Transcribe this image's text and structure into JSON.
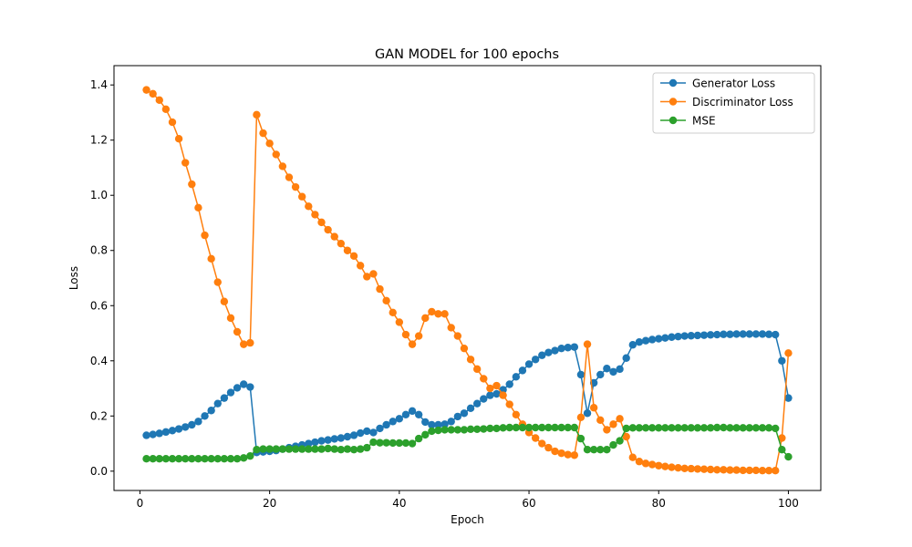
{
  "chart_data": {
    "type": "line",
    "title": "GAN MODEL  for 100 epochs",
    "xlabel": "Epoch",
    "ylabel": "Loss",
    "xlim": [
      -4,
      105
    ],
    "ylim": [
      -0.07,
      1.47
    ],
    "xticks": [
      0,
      20,
      40,
      60,
      80,
      100
    ],
    "yticks": [
      0.0,
      0.2,
      0.4,
      0.6,
      0.8,
      1.0,
      1.2,
      1.4
    ],
    "grid": false,
    "legend_position": "top-right",
    "x": [
      1,
      2,
      3,
      4,
      5,
      6,
      7,
      8,
      9,
      10,
      11,
      12,
      13,
      14,
      15,
      16,
      17,
      18,
      19,
      20,
      21,
      22,
      23,
      24,
      25,
      26,
      27,
      28,
      29,
      30,
      31,
      32,
      33,
      34,
      35,
      36,
      37,
      38,
      39,
      40,
      41,
      42,
      43,
      44,
      45,
      46,
      47,
      48,
      49,
      50,
      51,
      52,
      53,
      54,
      55,
      56,
      57,
      58,
      59,
      60,
      61,
      62,
      63,
      64,
      65,
      66,
      67,
      68,
      69,
      70,
      71,
      72,
      73,
      74,
      75,
      76,
      77,
      78,
      79,
      80,
      81,
      82,
      83,
      84,
      85,
      86,
      87,
      88,
      89,
      90,
      91,
      92,
      93,
      94,
      95,
      96,
      97,
      98,
      99,
      100
    ],
    "series": [
      {
        "name": "Generator Loss",
        "color": "#1f77b4",
        "values": [
          0.13,
          0.133,
          0.137,
          0.142,
          0.147,
          0.153,
          0.16,
          0.168,
          0.18,
          0.2,
          0.22,
          0.245,
          0.265,
          0.285,
          0.302,
          0.315,
          0.305,
          0.068,
          0.07,
          0.072,
          0.075,
          0.08,
          0.085,
          0.09,
          0.095,
          0.1,
          0.105,
          0.11,
          0.113,
          0.117,
          0.12,
          0.125,
          0.13,
          0.138,
          0.145,
          0.14,
          0.155,
          0.168,
          0.18,
          0.19,
          0.205,
          0.218,
          0.205,
          0.178,
          0.168,
          0.168,
          0.17,
          0.18,
          0.198,
          0.21,
          0.228,
          0.245,
          0.262,
          0.275,
          0.28,
          0.295,
          0.315,
          0.342,
          0.365,
          0.388,
          0.405,
          0.42,
          0.43,
          0.437,
          0.445,
          0.448,
          0.45,
          0.35,
          0.21,
          0.32,
          0.35,
          0.372,
          0.36,
          0.37,
          0.41,
          0.458,
          0.468,
          0.473,
          0.477,
          0.48,
          0.483,
          0.486,
          0.488,
          0.49,
          0.491,
          0.492,
          0.493,
          0.494,
          0.495,
          0.496,
          0.496,
          0.497,
          0.497,
          0.497,
          0.497,
          0.497,
          0.496,
          0.495,
          0.4,
          0.265
        ]
      },
      {
        "name": "Discriminator Loss",
        "color": "#ff7f0e",
        "values": [
          1.382,
          1.368,
          1.345,
          1.312,
          1.265,
          1.205,
          1.118,
          1.04,
          0.955,
          0.855,
          0.77,
          0.685,
          0.615,
          0.555,
          0.505,
          0.46,
          0.465,
          1.292,
          1.225,
          1.188,
          1.148,
          1.105,
          1.065,
          1.03,
          0.995,
          0.96,
          0.93,
          0.902,
          0.875,
          0.85,
          0.825,
          0.8,
          0.78,
          0.745,
          0.705,
          0.715,
          0.66,
          0.618,
          0.575,
          0.54,
          0.495,
          0.46,
          0.49,
          0.555,
          0.578,
          0.57,
          0.57,
          0.52,
          0.49,
          0.445,
          0.405,
          0.37,
          0.335,
          0.3,
          0.31,
          0.275,
          0.242,
          0.205,
          0.17,
          0.14,
          0.12,
          0.1,
          0.085,
          0.072,
          0.065,
          0.06,
          0.058,
          0.195,
          0.46,
          0.23,
          0.185,
          0.15,
          0.17,
          0.19,
          0.125,
          0.05,
          0.035,
          0.028,
          0.024,
          0.02,
          0.017,
          0.014,
          0.012,
          0.01,
          0.009,
          0.008,
          0.007,
          0.006,
          0.005,
          0.005,
          0.004,
          0.004,
          0.003,
          0.003,
          0.003,
          0.002,
          0.002,
          0.002,
          0.12,
          0.428
        ]
      },
      {
        "name": "MSE",
        "color": "#2ca02c",
        "values": [
          0.045,
          0.045,
          0.045,
          0.045,
          0.045,
          0.045,
          0.045,
          0.045,
          0.045,
          0.045,
          0.045,
          0.045,
          0.045,
          0.045,
          0.045,
          0.048,
          0.055,
          0.078,
          0.08,
          0.08,
          0.08,
          0.08,
          0.08,
          0.08,
          0.08,
          0.08,
          0.08,
          0.08,
          0.082,
          0.08,
          0.078,
          0.08,
          0.078,
          0.08,
          0.085,
          0.105,
          0.103,
          0.103,
          0.102,
          0.102,
          0.102,
          0.1,
          0.118,
          0.132,
          0.145,
          0.148,
          0.15,
          0.15,
          0.15,
          0.15,
          0.152,
          0.152,
          0.153,
          0.155,
          0.155,
          0.157,
          0.158,
          0.158,
          0.158,
          0.158,
          0.158,
          0.158,
          0.158,
          0.158,
          0.158,
          0.158,
          0.158,
          0.118,
          0.078,
          0.078,
          0.078,
          0.078,
          0.095,
          0.11,
          0.155,
          0.157,
          0.157,
          0.157,
          0.157,
          0.157,
          0.157,
          0.157,
          0.157,
          0.157,
          0.157,
          0.157,
          0.157,
          0.157,
          0.158,
          0.158,
          0.157,
          0.157,
          0.157,
          0.157,
          0.157,
          0.157,
          0.157,
          0.155,
          0.078,
          0.052
        ]
      }
    ]
  }
}
